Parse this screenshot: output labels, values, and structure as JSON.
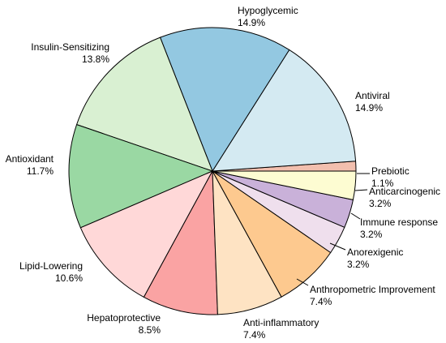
{
  "chart_data": {
    "type": "pie",
    "title": "",
    "start_angle_deg": 0,
    "direction": "counterclockwise",
    "slices": [
      {
        "label": "Prebiotic",
        "value": 1.1,
        "value_text": "1.1%",
        "color": "#F2BFAE"
      },
      {
        "label": "Antiviral",
        "value": 14.9,
        "value_text": "14.9%",
        "color": "#D4EAF2"
      },
      {
        "label": "Hypoglycemic",
        "value": 14.9,
        "value_text": "14.9%",
        "color": "#93C8E1"
      },
      {
        "label": "Insulin-Sensitizing",
        "value": 13.8,
        "value_text": "13.8%",
        "color": "#D9F0D2"
      },
      {
        "label": "Antioxidant",
        "value": 11.7,
        "value_text": "11.7%",
        "color": "#9AD8A3"
      },
      {
        "label": "Lipid-Lowering",
        "value": 10.6,
        "value_text": "10.6%",
        "color": "#FFD8D8"
      },
      {
        "label": "Hepatoprotective",
        "value": 8.5,
        "value_text": "8.5%",
        "color": "#FAA3A3"
      },
      {
        "label": "Anti-inflammatory",
        "value": 7.4,
        "value_text": "7.4%",
        "color": "#FEE3C3"
      },
      {
        "label": "Anthropometric Improvement",
        "value": 7.4,
        "value_text": "7.4%",
        "color": "#FDC98F"
      },
      {
        "label": "Anorexigenic",
        "value": 3.2,
        "value_text": "3.2%",
        "color": "#EFDFED"
      },
      {
        "label": "Immune response",
        "value": 3.2,
        "value_text": "3.2%",
        "color": "#C9B1D9"
      },
      {
        "label": "Anticarcinogenic",
        "value": 3.2,
        "value_text": "3.2%",
        "color": "#FDFCD2"
      }
    ]
  }
}
